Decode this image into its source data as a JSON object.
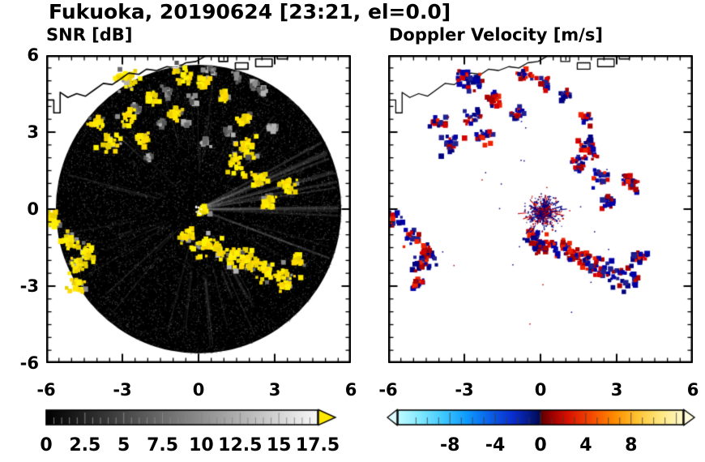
{
  "title": "Fukuoka, 20190624 [23:21, el=0.0]",
  "panels": [
    {
      "id": "snr",
      "title": "SNR [dB]"
    },
    {
      "id": "doppler",
      "title": "Doppler Velocity [m/s]"
    }
  ],
  "chart_data": [
    {
      "type": "heatmap",
      "name": "SNR [dB]",
      "xlim": [
        -6,
        6
      ],
      "ylim": [
        -6,
        6
      ],
      "xticks": [
        -6,
        -3,
        0,
        3,
        6
      ],
      "yticks": [
        -6,
        -3,
        0,
        3,
        6
      ],
      "minor_tick_step": 0.5,
      "radar_disc_radius": 5.62,
      "radar_center": [
        0,
        0
      ],
      "background_color": "#000000",
      "echo_color": "#ffe800",
      "colorbar": {
        "min": 0,
        "max": 17.5,
        "tick_values": [
          0,
          2.5,
          5,
          7.5,
          10,
          12.5,
          15,
          17.5
        ],
        "tick_labels": [
          "0",
          "2.5",
          "5",
          "7.5",
          "10",
          "12.5",
          "15",
          "17.5"
        ],
        "segment_step": 0.5,
        "gradient_start": "#000000",
        "gradient_end": "#f8f8f8",
        "over_arrow_color": "#ffe800"
      },
      "echo_cells": [
        [
          -2.7,
          5.0,
          0.45
        ],
        [
          -0.6,
          5.2,
          0.5
        ],
        [
          0.2,
          4.9,
          0.3
        ],
        [
          -3.05,
          5.15,
          0.3
        ],
        [
          -1.8,
          4.3,
          0.4
        ],
        [
          -0.9,
          3.8,
          0.35
        ],
        [
          -2.7,
          3.6,
          0.4
        ],
        [
          -4.0,
          3.4,
          0.45
        ],
        [
          -3.5,
          2.6,
          0.5
        ],
        [
          -2.2,
          2.8,
          0.4
        ],
        [
          1.0,
          4.4,
          0.3
        ],
        [
          1.8,
          3.5,
          0.3
        ],
        [
          1.9,
          2.4,
          0.6
        ],
        [
          1.5,
          1.7,
          0.5
        ],
        [
          2.4,
          1.2,
          0.45
        ],
        [
          3.5,
          1.0,
          0.5
        ],
        [
          2.7,
          0.3,
          0.35
        ],
        [
          0.15,
          -0.05,
          0.22
        ],
        [
          -5.75,
          -0.4,
          0.45
        ],
        [
          -5.0,
          -1.2,
          0.5
        ],
        [
          -4.4,
          -1.7,
          0.45
        ],
        [
          -4.7,
          -2.2,
          0.4
        ],
        [
          -4.8,
          -2.9,
          0.4
        ],
        [
          -0.4,
          -1.05,
          0.45
        ],
        [
          0.2,
          -1.4,
          0.5
        ],
        [
          0.8,
          -1.6,
          0.5
        ],
        [
          1.4,
          -1.8,
          0.5
        ],
        [
          2.0,
          -2.1,
          0.55
        ],
        [
          2.7,
          -2.4,
          0.55
        ],
        [
          3.4,
          -2.65,
          0.6
        ],
        [
          3.9,
          -1.9,
          0.3
        ]
      ],
      "weak_cells": [
        [
          -1.2,
          4.6,
          0.3
        ],
        [
          -0.2,
          4.2,
          0.3
        ],
        [
          0.5,
          5.4,
          0.3
        ],
        [
          1.5,
          5.2,
          0.3
        ],
        [
          2.5,
          4.6,
          0.25
        ],
        [
          -0.5,
          3.3,
          0.25
        ],
        [
          -1.5,
          3.3,
          0.2
        ],
        [
          0.3,
          2.6,
          0.25
        ],
        [
          2.9,
          3.2,
          0.25
        ],
        [
          -2.0,
          2.0,
          0.2
        ],
        [
          1.2,
          3.0,
          0.2
        ],
        [
          2.2,
          4.9,
          0.25
        ],
        [
          -2.4,
          4.0,
          0.25
        ]
      ]
    },
    {
      "type": "heatmap",
      "name": "Doppler Velocity [m/s]",
      "xlim": [
        -6,
        6
      ],
      "ylim": [
        -6,
        6
      ],
      "xticks": [
        -6,
        -3,
        0,
        3,
        6
      ],
      "yticks": [
        -6,
        -3,
        0,
        3,
        6
      ],
      "minor_tick_step": 0.5,
      "negative_color": "#000080",
      "positive_color": "#d40000",
      "colorbar": {
        "min": -12.6,
        "max": 12.6,
        "tick_values": [
          -8,
          -4,
          0,
          4,
          8
        ],
        "tick_labels": [
          "-8",
          "-4",
          "0",
          "4",
          "8"
        ],
        "segment_step": 1,
        "stops": [
          [
            0,
            "#bffbff"
          ],
          [
            0.08,
            "#7fe8ff"
          ],
          [
            0.16,
            "#3fc8ff"
          ],
          [
            0.24,
            "#0f9bff"
          ],
          [
            0.32,
            "#0b62e8"
          ],
          [
            0.4,
            "#0a2fd0"
          ],
          [
            0.46,
            "#051a8a"
          ],
          [
            0.497,
            "#020a50"
          ],
          [
            0.503,
            "#5c0000"
          ],
          [
            0.54,
            "#9e0000"
          ],
          [
            0.6,
            "#d81400"
          ],
          [
            0.68,
            "#f54a00"
          ],
          [
            0.76,
            "#ff8c00"
          ],
          [
            0.84,
            "#ffc433"
          ],
          [
            0.92,
            "#ffe77f"
          ],
          [
            1,
            "#fff9c9"
          ]
        ],
        "under_arrow_color": "#dffcff",
        "over_arrow_color": "#fffbdd"
      },
      "velocity_cells": [
        [
          -2.7,
          5.0,
          0.45
        ],
        [
          -0.6,
          5.2,
          0.5
        ],
        [
          0.2,
          4.9,
          0.3
        ],
        [
          -3.05,
          5.15,
          0.3
        ],
        [
          -1.8,
          4.3,
          0.4
        ],
        [
          -0.9,
          3.8,
          0.35
        ],
        [
          -2.7,
          3.6,
          0.4
        ],
        [
          -4.0,
          3.4,
          0.45
        ],
        [
          -3.5,
          2.6,
          0.5
        ],
        [
          -2.2,
          2.8,
          0.4
        ],
        [
          1.0,
          4.4,
          0.3
        ],
        [
          1.8,
          3.5,
          0.3
        ],
        [
          1.9,
          2.4,
          0.6
        ],
        [
          1.5,
          1.7,
          0.5
        ],
        [
          2.4,
          1.2,
          0.45
        ],
        [
          3.5,
          1.0,
          0.5
        ],
        [
          2.7,
          0.3,
          0.35
        ],
        [
          0.15,
          -0.05,
          0.22
        ],
        [
          -5.75,
          -0.4,
          0.45
        ],
        [
          -5.0,
          -1.2,
          0.5
        ],
        [
          -4.4,
          -1.7,
          0.45
        ],
        [
          -4.7,
          -2.2,
          0.4
        ],
        [
          -4.8,
          -2.9,
          0.4
        ],
        [
          -0.4,
          -1.05,
          0.45
        ],
        [
          0.2,
          -1.4,
          0.5
        ],
        [
          0.8,
          -1.6,
          0.5
        ],
        [
          1.4,
          -1.8,
          0.5
        ],
        [
          2.0,
          -2.1,
          0.55
        ],
        [
          2.7,
          -2.4,
          0.55
        ],
        [
          3.4,
          -2.65,
          0.6
        ],
        [
          3.9,
          -1.9,
          0.3
        ]
      ],
      "center_clutter": {
        "center": [
          0.1,
          -0.1
        ],
        "radius": 1.6
      }
    }
  ],
  "coastline": {
    "mainland": [
      [
        -6,
        4.25
      ],
      [
        -5.7,
        4.25
      ],
      [
        -5.7,
        3.75
      ],
      [
        -5.45,
        3.75
      ],
      [
        -5.45,
        4.55
      ],
      [
        -5.15,
        4.35
      ],
      [
        -4.8,
        4.5
      ],
      [
        -4.45,
        4.4
      ],
      [
        -4.1,
        4.65
      ],
      [
        -3.75,
        4.9
      ],
      [
        -3.4,
        4.85
      ],
      [
        -3.1,
        5.05
      ],
      [
        -2.75,
        5.3
      ],
      [
        -2.35,
        5.25
      ],
      [
        -2.05,
        5.45
      ],
      [
        -1.65,
        5.4
      ],
      [
        -1.25,
        5.55
      ],
      [
        -0.85,
        5.5
      ],
      [
        -0.5,
        5.7
      ],
      [
        -0.1,
        5.75
      ],
      [
        0.25,
        5.95
      ],
      [
        0.45,
        6.05
      ]
    ],
    "islands": [
      [
        [
          0.8,
          5.75
        ],
        [
          1.15,
          5.75
        ],
        [
          1.15,
          6.05
        ],
        [
          0.8,
          6.05
        ]
      ],
      [
        [
          1.45,
          5.45
        ],
        [
          1.95,
          5.45
        ],
        [
          1.95,
          5.7
        ],
        [
          1.45,
          5.7
        ]
      ],
      [
        [
          2.25,
          5.55
        ],
        [
          2.9,
          5.55
        ],
        [
          2.9,
          5.85
        ],
        [
          2.25,
          5.85
        ]
      ],
      [
        [
          3.1,
          5.85
        ],
        [
          3.5,
          5.85
        ],
        [
          3.5,
          6.05
        ],
        [
          3.1,
          6.05
        ]
      ]
    ]
  }
}
